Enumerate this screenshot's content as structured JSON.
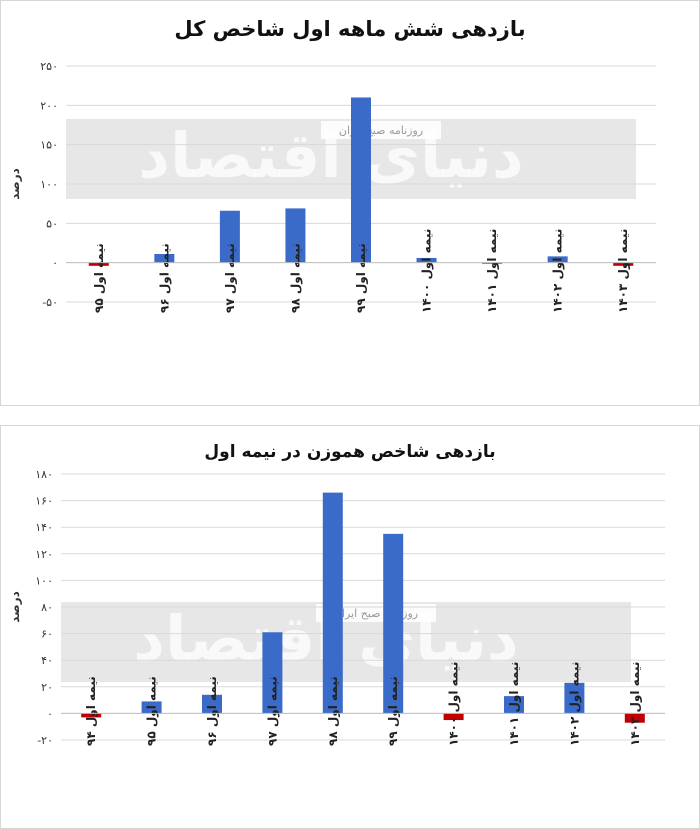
{
  "watermark": {
    "brand": "دنیای اقتصاد",
    "tagline": "روزنامه صبح ایران"
  },
  "colors": {
    "positive": "#3a6bc9",
    "negative": "#c00000",
    "grid": "#d9d9d9"
  },
  "chart_data": [
    {
      "type": "bar",
      "title": "بازدهی شش ماهه اول شاخص کل",
      "ylabel": "درصد",
      "xlabel": "",
      "ylim": [
        -50,
        250
      ],
      "yticks": [
        -50,
        0,
        50,
        100,
        150,
        200,
        250
      ],
      "ytick_labels": [
        "-۵۰",
        "۰",
        "۵۰",
        "۱۰۰",
        "۱۵۰",
        "۲۰۰",
        "۲۵۰"
      ],
      "grid": true,
      "categories": [
        "نیمه اول ۹۵",
        "نیمه اول ۹۶",
        "نیمه اول ۹۷",
        "نیمه اول ۹۸",
        "نیمه اول ۹۹",
        "نیمه اول ۱۴۰۰",
        "نیمه اول ۱۴۰۱",
        "نیمه اول ۱۴۰۲",
        "نیمه اول ۱۴۰۳"
      ],
      "values": [
        -4,
        11,
        66,
        69,
        210,
        6,
        -1,
        8,
        -4
      ]
    },
    {
      "type": "bar",
      "title": "بازدهی شاخص هموزن در نیمه اول",
      "ylabel": "درصد",
      "xlabel": "",
      "ylim": [
        -20,
        180
      ],
      "yticks": [
        -20,
        0,
        20,
        40,
        60,
        80,
        100,
        120,
        140,
        160,
        180
      ],
      "ytick_labels": [
        "-۲۰",
        "۰",
        "۲۰",
        "۴۰",
        "۶۰",
        "۸۰",
        "۱۰۰",
        "۱۲۰",
        "۱۴۰",
        "۱۶۰",
        "۱۸۰"
      ],
      "grid": true,
      "categories": [
        "نیمه اول ۹۴",
        "نیمه اول ۹۵",
        "نیمه اول ۹۶",
        "نیمه اول ۹۷",
        "نیمه اول ۹۸",
        "نیمه اول ۹۹",
        "نیمه اول ۱۴۰۰",
        "نیمه اول ۱۴۰۱",
        "نیمه اول ۱۴۰۲",
        "نیمه اول ۱۴۰۳"
      ],
      "values": [
        -3,
        9,
        14,
        61,
        166,
        135,
        -5,
        13,
        23,
        -7
      ]
    }
  ]
}
